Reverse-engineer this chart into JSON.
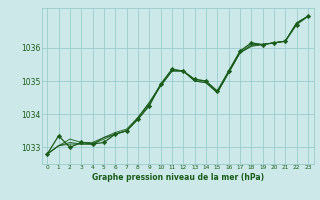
{
  "background_color": "#cce8e8",
  "plot_bg_color": "#cce8e8",
  "grid_color": "#99cccc",
  "line_color": "#1a5c1a",
  "marker_color": "#1a5c1a",
  "xlabel": "Graphe pression niveau de la mer (hPa)",
  "xlabel_color": "#1a5c1a",
  "ylim": [
    1032.5,
    1037.2
  ],
  "xlim": [
    -0.5,
    23.5
  ],
  "yticks": [
    1033,
    1034,
    1035,
    1036
  ],
  "xticks": [
    0,
    1,
    2,
    3,
    4,
    5,
    6,
    7,
    8,
    9,
    10,
    11,
    12,
    13,
    14,
    15,
    16,
    17,
    18,
    19,
    20,
    21,
    22,
    23
  ],
  "series1_x": [
    0,
    1,
    2,
    3,
    4,
    5,
    6,
    7,
    8,
    9,
    10,
    11,
    12,
    13,
    14,
    15,
    16,
    17,
    18,
    19,
    20,
    21,
    22,
    23
  ],
  "series1_y": [
    1032.8,
    1033.35,
    1033.0,
    1033.15,
    1033.1,
    1033.15,
    1033.4,
    1033.5,
    1033.85,
    1034.25,
    1034.9,
    1035.35,
    1035.3,
    1035.05,
    1035.0,
    1034.7,
    1035.3,
    1035.9,
    1036.15,
    1036.1,
    1036.15,
    1036.2,
    1036.7,
    1036.95
  ],
  "series2_x": [
    0,
    1,
    2,
    3,
    4,
    5,
    6,
    7,
    8,
    9,
    10,
    11,
    12,
    13,
    14,
    15,
    16,
    17,
    18,
    19,
    20,
    21,
    22,
    23
  ],
  "series2_y": [
    1032.8,
    1033.05,
    1033.15,
    1033.1,
    1033.1,
    1033.3,
    1033.4,
    1033.5,
    1033.9,
    1034.35,
    1034.85,
    1035.3,
    1035.3,
    1035.0,
    1034.95,
    1034.65,
    1035.25,
    1035.85,
    1036.05,
    1036.1,
    1036.15,
    1036.2,
    1036.75,
    1036.95
  ],
  "series3_x": [
    0,
    1,
    2,
    3,
    4,
    5,
    6,
    7,
    8,
    9,
    10,
    11,
    12,
    13,
    14,
    15,
    16,
    17,
    18,
    19,
    20,
    21,
    22,
    23
  ],
  "series3_y": [
    1032.8,
    1033.05,
    1033.25,
    1033.15,
    1033.15,
    1033.3,
    1033.45,
    1033.55,
    1033.9,
    1034.35,
    1034.9,
    1035.35,
    1035.3,
    1035.05,
    1035.0,
    1034.65,
    1035.25,
    1035.85,
    1036.1,
    1036.1,
    1036.15,
    1036.2,
    1036.75,
    1036.95
  ],
  "series4_x": [
    0,
    1,
    2,
    3,
    4,
    5,
    6,
    7,
    8,
    9,
    10,
    11,
    12,
    13,
    14,
    15,
    16,
    17,
    18,
    19,
    20,
    21,
    22,
    23
  ],
  "series4_y": [
    1032.8,
    1033.05,
    1033.1,
    1033.1,
    1033.1,
    1033.25,
    1033.4,
    1033.5,
    1033.85,
    1034.3,
    1034.85,
    1035.3,
    1035.3,
    1035.0,
    1034.95,
    1034.65,
    1035.25,
    1035.85,
    1036.05,
    1036.1,
    1036.15,
    1036.2,
    1036.75,
    1036.95
  ],
  "main_x": [
    0,
    1,
    2,
    3,
    4,
    5,
    6,
    7,
    8,
    9,
    10,
    11,
    12,
    13,
    14,
    15,
    16,
    17,
    18,
    19,
    20,
    21,
    22,
    23
  ],
  "main_y": [
    1032.8,
    1033.35,
    1033.0,
    1033.15,
    1033.1,
    1033.15,
    1033.4,
    1033.5,
    1033.85,
    1034.25,
    1034.9,
    1035.35,
    1035.3,
    1035.05,
    1035.0,
    1034.7,
    1035.3,
    1035.9,
    1036.15,
    1036.1,
    1036.15,
    1036.2,
    1036.7,
    1036.95
  ]
}
